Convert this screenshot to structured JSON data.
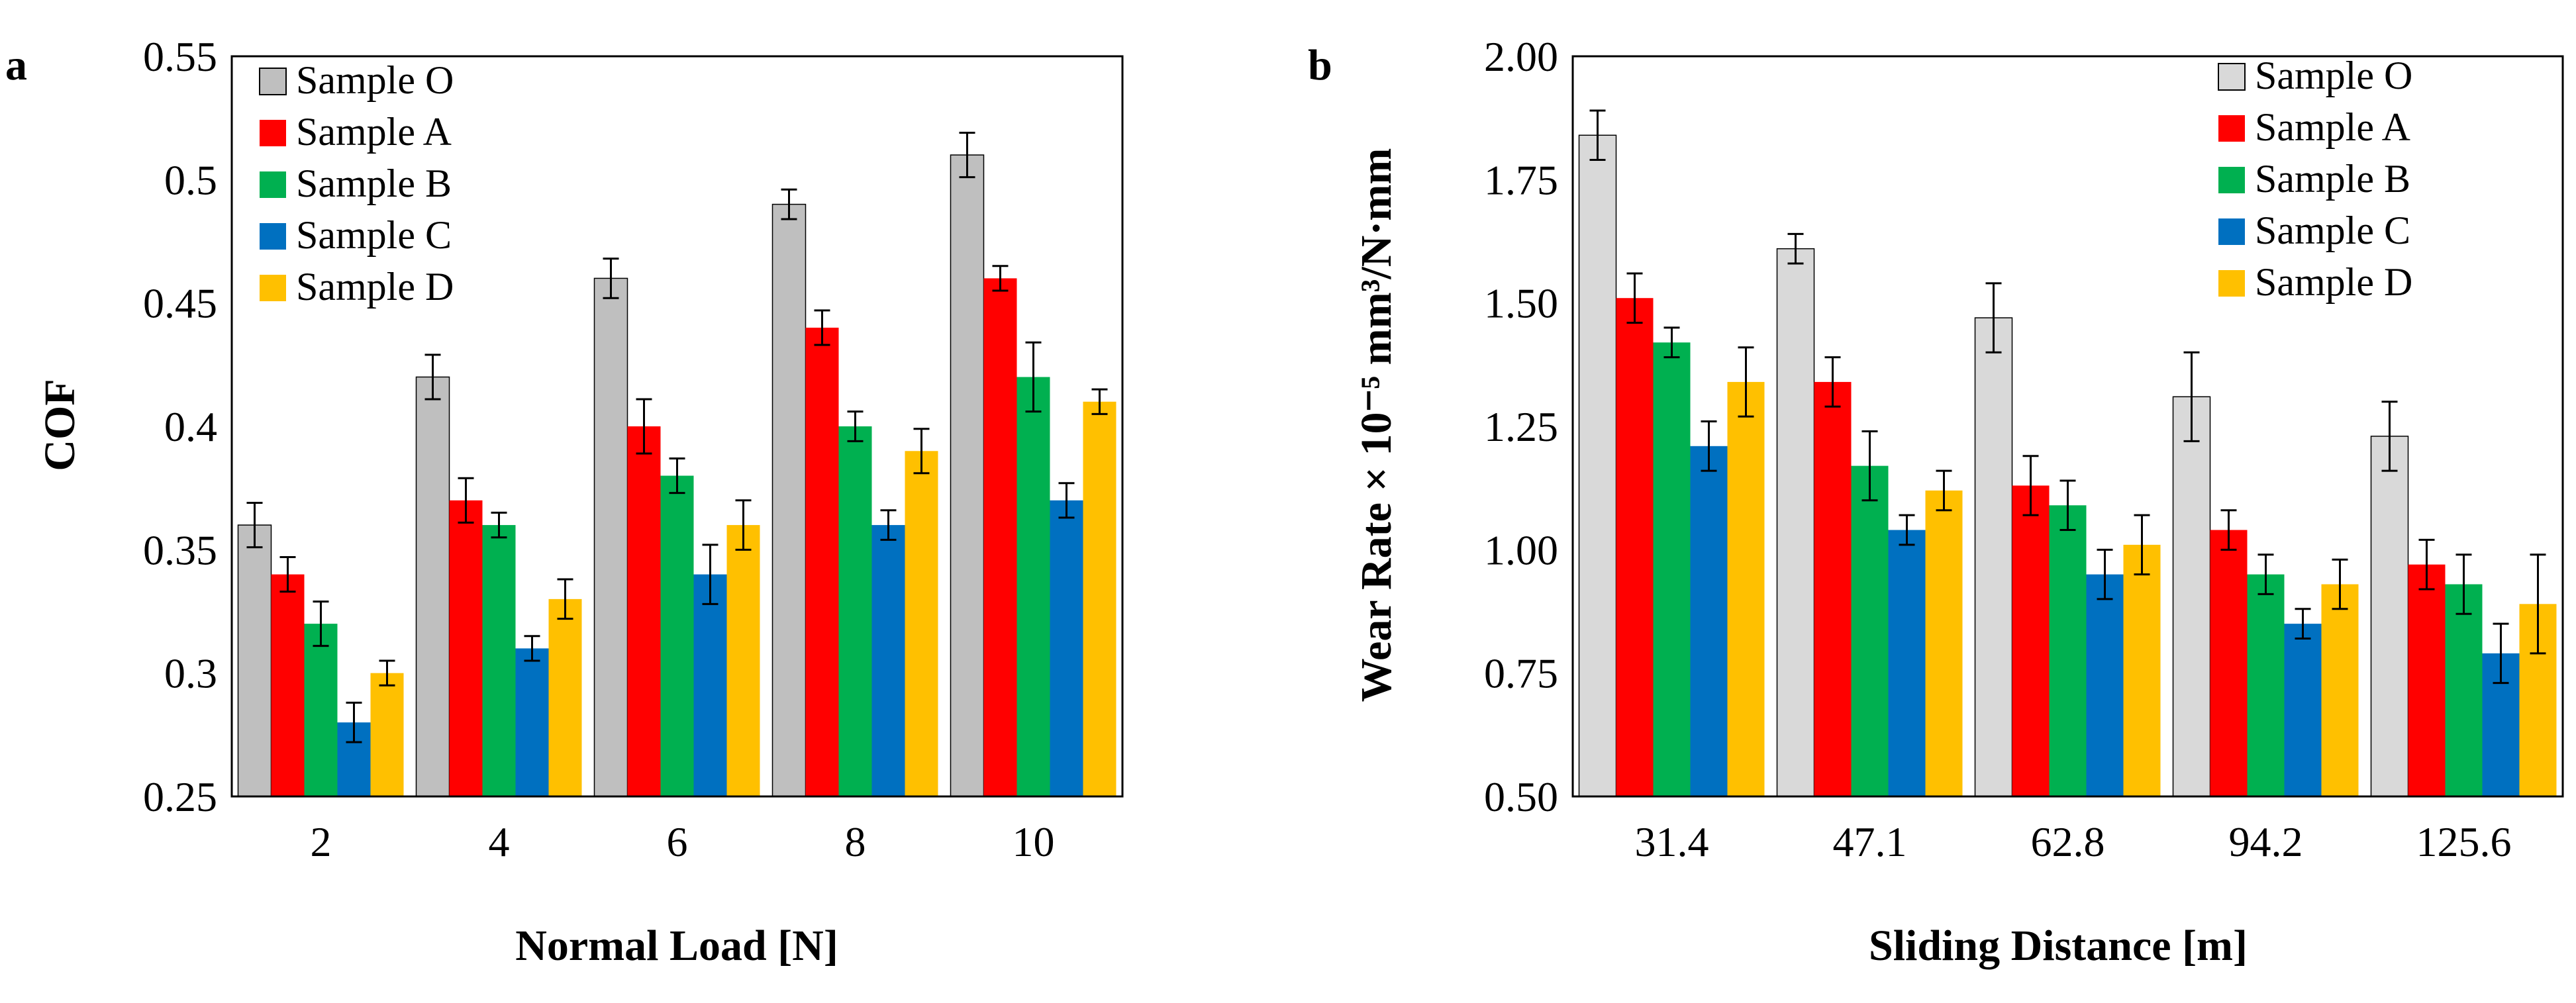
{
  "chart_data": [
    {
      "type": "bar",
      "panel_label": "a",
      "title": "",
      "xlabel": "Normal Load [N]",
      "ylabel": "COF",
      "ylim": [
        0.25,
        0.55
      ],
      "y_ticks": [
        "0.25",
        "0.3",
        "0.35",
        "0.4",
        "0.45",
        "0.5",
        "0.55"
      ],
      "grid": false,
      "legend_position": "top-left",
      "categories": [
        "2",
        "4",
        "6",
        "8",
        "10"
      ],
      "series": [
        {
          "name": "Sample O",
          "color": "#bfbfbf",
          "values": [
            0.36,
            0.42,
            0.46,
            0.49,
            0.51
          ],
          "errors": [
            0.009,
            0.009,
            0.008,
            0.006,
            0.009
          ]
        },
        {
          "name": "Sample A",
          "color": "#ff0000",
          "values": [
            0.34,
            0.37,
            0.4,
            0.44,
            0.46
          ],
          "errors": [
            0.007,
            0.009,
            0.011,
            0.007,
            0.005
          ]
        },
        {
          "name": "Sample B",
          "color": "#00b050",
          "values": [
            0.32,
            0.36,
            0.38,
            0.4,
            0.42
          ],
          "errors": [
            0.009,
            0.005,
            0.007,
            0.006,
            0.014
          ]
        },
        {
          "name": "Sample C",
          "color": "#0070c0",
          "values": [
            0.28,
            0.31,
            0.34,
            0.36,
            0.37
          ],
          "errors": [
            0.008,
            0.005,
            0.012,
            0.006,
            0.007
          ]
        },
        {
          "name": "Sample D",
          "color": "#ffc000",
          "values": [
            0.3,
            0.33,
            0.36,
            0.39,
            0.41
          ],
          "errors": [
            0.005,
            0.008,
            0.01,
            0.009,
            0.005
          ]
        }
      ]
    },
    {
      "type": "bar",
      "panel_label": "b",
      "title": "",
      "xlabel": "Sliding Distance [m]",
      "ylabel": "Wear Rate × 10⁻⁵ mm³/N·mm",
      "ylim": [
        0.5,
        2.0
      ],
      "y_ticks": [
        "0.50",
        "0.75",
        "1.00",
        "1.25",
        "1.50",
        "1.75",
        "2.00"
      ],
      "grid": false,
      "legend_position": "top-right",
      "categories": [
        "31.4",
        "47.1",
        "62.8",
        "94.2",
        "125.6"
      ],
      "series": [
        {
          "name": "Sample O",
          "color": "#d9d9d9",
          "values": [
            1.84,
            1.61,
            1.47,
            1.31,
            1.23
          ],
          "errors": [
            0.05,
            0.03,
            0.07,
            0.09,
            0.07
          ]
        },
        {
          "name": "Sample A",
          "color": "#ff0000",
          "values": [
            1.51,
            1.34,
            1.13,
            1.04,
            0.97
          ],
          "errors": [
            0.05,
            0.05,
            0.06,
            0.04,
            0.05
          ]
        },
        {
          "name": "Sample B",
          "color": "#00b050",
          "values": [
            1.42,
            1.17,
            1.09,
            0.95,
            0.93
          ],
          "errors": [
            0.03,
            0.07,
            0.05,
            0.04,
            0.06
          ]
        },
        {
          "name": "Sample C",
          "color": "#0070c0",
          "values": [
            1.21,
            1.04,
            0.95,
            0.85,
            0.79
          ],
          "errors": [
            0.05,
            0.03,
            0.05,
            0.03,
            0.06
          ]
        },
        {
          "name": "Sample D",
          "color": "#ffc000",
          "values": [
            1.34,
            1.12,
            1.01,
            0.93,
            0.89
          ],
          "errors": [
            0.07,
            0.04,
            0.06,
            0.05,
            0.1
          ]
        }
      ]
    }
  ]
}
